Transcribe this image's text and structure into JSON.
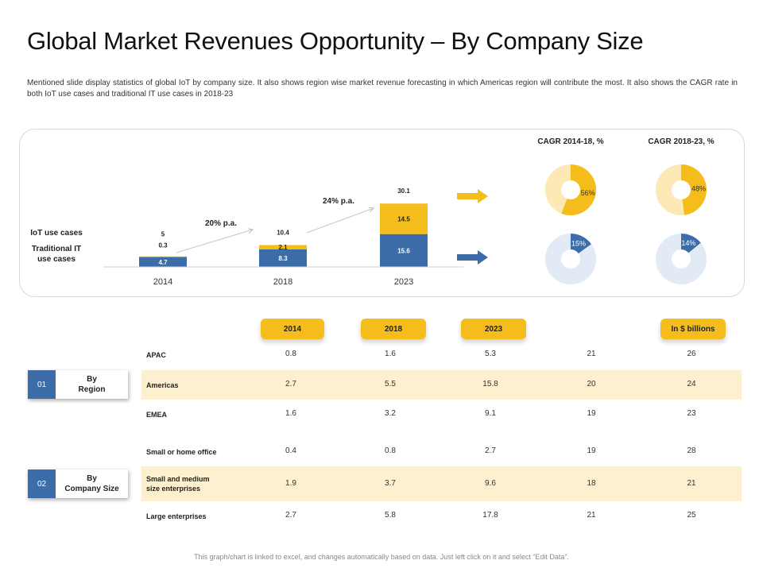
{
  "page": {
    "title": "Global Market Revenues Opportunity – By Company Size",
    "description": "Mentioned slide display statistics  of global IoT by company size. It also shows region wise market revenue forecasting  in which Americas region will contribute the most. It also shows the CAGR rate in both IoT use cases and traditional  IT use cases in 2018-23",
    "footer": "This graph/chart is linked to excel, and changes automatically based on data. Just left click on it and select “Edit Data”."
  },
  "colors": {
    "blue": "#3d6da8",
    "yellow": "#f5bd1c",
    "light_yellow": "#fde9b5",
    "light_blue": "#e2eaf6",
    "band": "#fcf0cf"
  },
  "labels": {
    "iot": "IoT use cases",
    "traditional_line1": "Traditional IT",
    "traditional_line2": "use cases",
    "growth_1": "20% p.a.",
    "growth_2": "24% p.a."
  },
  "chart_data": [
    {
      "type": "bar",
      "stacked": true,
      "categories": [
        "2014",
        "2018",
        "2023"
      ],
      "series": [
        {
          "name": "Traditional IT use cases",
          "values": [
            4.7,
            8.3,
            15.6
          ]
        },
        {
          "name": "IoT use cases",
          "values": [
            0.3,
            2.1,
            14.5
          ]
        }
      ],
      "totals": [
        5,
        10.4,
        30.1
      ],
      "annotations": [
        "20% p.a.",
        "24% p.a."
      ]
    },
    {
      "type": "pie",
      "title": "CAGR 2014-18, %",
      "charts": [
        {
          "series": "IoT use cases",
          "value": 56,
          "label": "56%"
        },
        {
          "series": "Traditional IT use cases",
          "value": 15,
          "label": "15%"
        }
      ]
    },
    {
      "type": "pie",
      "title": "CAGR 2018-23, %",
      "charts": [
        {
          "series": "IoT use cases",
          "value": 48,
          "label": "48%"
        },
        {
          "series": "Traditional IT use cases",
          "value": 14,
          "label": "14%"
        }
      ]
    },
    {
      "type": "table",
      "unit": "In $ billions",
      "columns": [
        "2014",
        "2018",
        "2023",
        "",
        "In $ billions"
      ],
      "groups": [
        {
          "number": "01",
          "label_line1": "By",
          "label_line2": "Region",
          "rows": [
            {
              "label": "APAC",
              "values": [
                "0.8",
                "1.6",
                "5.3",
                "21",
                "26"
              ]
            },
            {
              "label": "Americas",
              "values": [
                "2.7",
                "5.5",
                "15.8",
                "20",
                "24"
              ]
            },
            {
              "label": "EMEA",
              "values": [
                "1.6",
                "3.2",
                "9.1",
                "19",
                "23"
              ]
            }
          ]
        },
        {
          "number": "02",
          "label_line1": "By",
          "label_line2": "Company Size",
          "rows": [
            {
              "label": "Small or home office",
              "values": [
                "0.4",
                "0.8",
                "2.7",
                "19",
                "28"
              ]
            },
            {
              "label_line1": "Small and medium",
              "label_line2": "size enterprises",
              "values": [
                "1.9",
                "3.7",
                "9.6",
                "18",
                "21"
              ]
            },
            {
              "label": "Large enterprises",
              "values": [
                "2.7",
                "5.8",
                "17.8",
                "21",
                "25"
              ]
            }
          ]
        }
      ]
    }
  ]
}
